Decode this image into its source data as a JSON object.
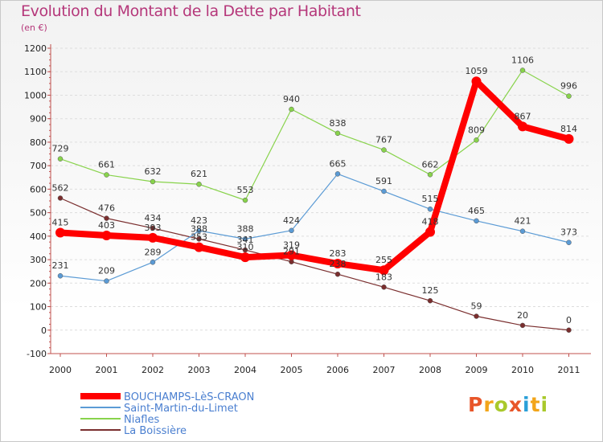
{
  "title": "Evolution du Montant de la Dette par Habitant",
  "subtitle": "(en €)",
  "logo": {
    "text": "Proxiti",
    "colors": [
      "#e8562a",
      "#f2a51a",
      "#a9c92b",
      "#e8562a",
      "#2a9fd8",
      "#f2a51a",
      "#a9c92b"
    ]
  },
  "chart_data": {
    "type": "line",
    "title": "Evolution du Montant de la Dette par Habitant",
    "subtitle": "(en €)",
    "xlabel": "",
    "ylabel": "",
    "x": [
      "2000",
      "2001",
      "2002",
      "2003",
      "2004",
      "2005",
      "2006",
      "2007",
      "2008",
      "2009",
      "2010",
      "2011"
    ],
    "ylim": [
      -100,
      1200
    ],
    "yticks": [
      "-100",
      "0",
      "100",
      "200",
      "300",
      "400",
      "500",
      "600",
      "700",
      "800",
      "900",
      "1000",
      "1100",
      "1200"
    ],
    "grid": "horizontal dashed",
    "legend_position": "bottom-left",
    "series": [
      {
        "name": "BOUCHAMPS-LèS-CRAON",
        "color": "#ff0000",
        "values": [
          415,
          403,
          393,
          353,
          310,
          319,
          283,
          255,
          418,
          1059,
          867,
          814
        ],
        "labels": [
          "415",
          "403",
          "393",
          "353",
          "310",
          "319",
          "283",
          "255",
          "418",
          "1059",
          "867",
          "814"
        ]
      },
      {
        "name": "Saint-Martin-du-Limet",
        "color": "#5b9bd5",
        "values": [
          231,
          209,
          289,
          423,
          388,
          424,
          665,
          591,
          515,
          465,
          421,
          373
        ],
        "labels": [
          "231",
          "209",
          "289",
          "423",
          "388",
          "424",
          "665",
          "591",
          "515",
          "465",
          "421",
          "373"
        ]
      },
      {
        "name": "Niafles",
        "color": "#88d34b",
        "values": [
          729,
          661,
          632,
          621,
          553,
          940,
          838,
          767,
          662,
          809,
          1106,
          996
        ],
        "labels": [
          "729",
          "661",
          "632",
          "621",
          "553",
          "940",
          "838",
          "767",
          "662",
          "809",
          "1106",
          "996"
        ]
      },
      {
        "name": "La Boissière",
        "color": "#7a2e2e",
        "values": [
          562,
          476,
          434,
          388,
          341,
          291,
          238,
          183,
          125,
          59,
          20,
          0
        ],
        "labels": [
          "562",
          "476",
          "434",
          "388",
          "341",
          "291",
          "238",
          "183",
          "125",
          "59",
          "20",
          "0"
        ]
      }
    ]
  }
}
